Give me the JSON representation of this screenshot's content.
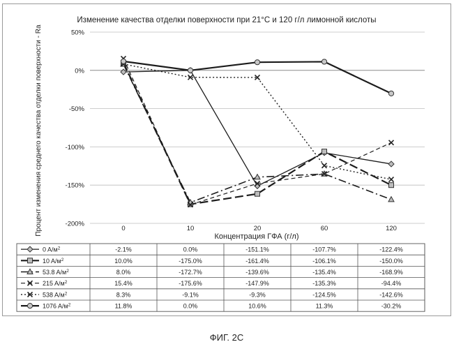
{
  "chart_data": {
    "type": "line",
    "title": "Изменение качества отделки поверхности при 21°C и 120 г/л лимонной кислоты",
    "xlabel": "Концентрация ГФА (г/л)",
    "ylabel": "Процент изменения среднего качества отделки поверхности - Ra",
    "categories": [
      "0",
      "10",
      "20",
      "60",
      "120"
    ],
    "ylim": [
      -200,
      50
    ],
    "yticks": [
      "50%",
      "0%",
      "-50%",
      "-100%",
      "-150%",
      "-200%"
    ],
    "ytick_values": [
      50,
      0,
      -50,
      -100,
      -150,
      -200
    ],
    "grid": true,
    "legend_placement": "table-below",
    "series": [
      {
        "label": "0",
        "unit": "A/м",
        "sup": "2",
        "values": [
          -2.1,
          0.0,
          -151.1,
          -107.7,
          -122.4
        ],
        "value_labels": [
          "-2.1%",
          "0.0%",
          "-151.1%",
          "-107.7%",
          "-122.4%"
        ],
        "marker": "diamond",
        "dash": "solid",
        "width": 1.3,
        "marker_fill": "#bdbdbd"
      },
      {
        "label": "10",
        "unit": "A/м",
        "sup": "2",
        "values": [
          10.0,
          -175.0,
          -161.4,
          -106.1,
          -150.0
        ],
        "value_labels": [
          "10.0%",
          "-175.0%",
          "-161.4%",
          "-106.1%",
          "-150.0%"
        ],
        "marker": "square",
        "dash": "long",
        "width": 2.2,
        "marker_fill": "#bdbdbd"
      },
      {
        "label": "53.8",
        "unit": "A/м",
        "sup": "2",
        "values": [
          8.0,
          -172.7,
          -139.6,
          -135.4,
          -168.9
        ],
        "value_labels": [
          "8.0%",
          "-172.7%",
          "-139.6%",
          "-135.4%",
          "-168.9%"
        ],
        "marker": "triangle",
        "dash": "dashdot",
        "width": 1.6,
        "marker_fill": "#bdbdbd"
      },
      {
        "label": "215",
        "unit": "A/м",
        "sup": "2",
        "values": [
          15.4,
          -175.6,
          -147.9,
          -135.3,
          -94.4
        ],
        "value_labels": [
          "15.4%",
          "-175.6%",
          "-147.9%",
          "-135.3%",
          "-94.4%"
        ],
        "marker": "x",
        "dash": "dash",
        "width": 1.2,
        "marker_fill": "#333333"
      },
      {
        "label": "538",
        "unit": "A/м",
        "sup": "2",
        "values": [
          8.3,
          -9.1,
          -9.3,
          -124.5,
          -142.6
        ],
        "value_labels": [
          "8.3%",
          "-9.1%",
          "-9.3%",
          "-124.5%",
          "-142.6%"
        ],
        "marker": "x",
        "dash": "dot",
        "width": 1.4,
        "marker_fill": "#333333"
      },
      {
        "label": "1076",
        "unit": "A/м",
        "sup": "2",
        "values": [
          11.8,
          0.0,
          10.6,
          11.3,
          -30.2
        ],
        "value_labels": [
          "11.8%",
          "0.0%",
          "10.6%",
          "11.3%",
          "-30.2%"
        ],
        "marker": "circle",
        "dash": "solid",
        "width": 2.2,
        "marker_fill": "#c8c8c8"
      }
    ]
  },
  "caption": "ФИГ. 2C"
}
